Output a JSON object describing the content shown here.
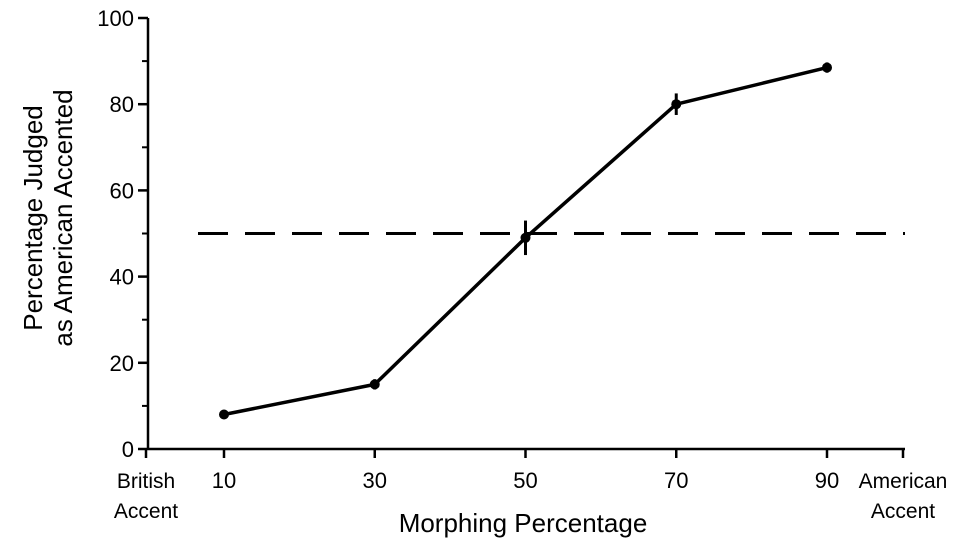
{
  "chart_data": {
    "type": "line",
    "x": [
      10,
      30,
      50,
      70,
      90
    ],
    "series": [
      {
        "values": [
          8,
          15,
          49,
          80,
          88.5
        ],
        "error": [
          0.8,
          1.2,
          4,
          2.5,
          1.2
        ]
      }
    ],
    "reference_line": {
      "y": 50,
      "style": "dashed"
    },
    "xlabel": "Morphing Percentage",
    "ylabel": [
      "Percentage Judged",
      "as American Accented"
    ],
    "x_ticks": [
      10,
      30,
      50,
      70,
      90
    ],
    "y_ticks": [
      0,
      20,
      40,
      60,
      80,
      100
    ],
    "ylim": [
      0,
      100
    ],
    "x_left_label": [
      "British",
      "Accent"
    ],
    "x_right_label": [
      "American",
      "Accent"
    ],
    "grid": false,
    "colors": {
      "line": "#000000",
      "background": "#ffffff"
    }
  }
}
